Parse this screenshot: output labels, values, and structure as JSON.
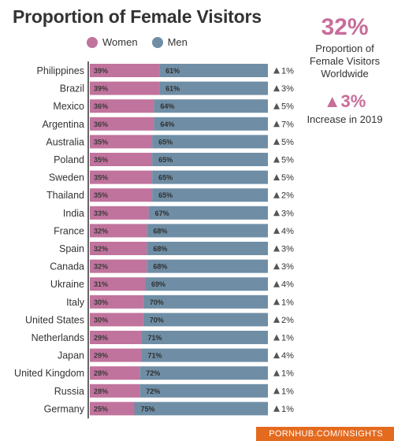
{
  "title": "Proportion of Female Visitors",
  "legend": {
    "women": "Women",
    "men": "Men"
  },
  "side": {
    "stat_value": "32%",
    "stat_caption": "Proportion of Female Visitors Worldwide",
    "increase_value": "3%",
    "increase_caption": "Increase in 2019"
  },
  "footer": "PORNHUB.COM/INSIGHTS",
  "colors": {
    "women": "#c0739c",
    "men": "#6f8ea5",
    "accent": "#c86d9a",
    "footer": "#e46a1e"
  },
  "icons": {
    "increase": "up-triangle-icon"
  },
  "chart_data": {
    "type": "bar",
    "orientation": "horizontal",
    "stacked": true,
    "percent_stacked": true,
    "categories": [
      "Philippines",
      "Brazil",
      "Mexico",
      "Argentina",
      "Australia",
      "Poland",
      "Sweden",
      "Thailand",
      "India",
      "France",
      "Spain",
      "Canada",
      "Ukraine",
      "Italy",
      "United States",
      "Netherlands",
      "Japan",
      "United Kingdom",
      "Russia",
      "Germany"
    ],
    "series": [
      {
        "name": "Women",
        "values": [
          39,
          39,
          36,
          36,
          35,
          35,
          35,
          35,
          33,
          32,
          32,
          32,
          31,
          30,
          30,
          29,
          29,
          28,
          28,
          25
        ]
      },
      {
        "name": "Men",
        "values": [
          61,
          61,
          64,
          64,
          65,
          65,
          65,
          65,
          67,
          68,
          68,
          68,
          69,
          70,
          70,
          71,
          71,
          72,
          72,
          75
        ]
      }
    ],
    "change_labels": [
      "1%",
      "3%",
      "5%",
      "7%",
      "5%",
      "5%",
      "5%",
      "2%",
      "3%",
      "4%",
      "3%",
      "3%",
      "4%",
      "1%",
      "2%",
      "1%",
      "4%",
      "1%",
      "1%",
      "1%"
    ],
    "value_suffix": "%",
    "xlim": [
      0,
      100
    ],
    "legend_position": "top",
    "grid": false
  }
}
